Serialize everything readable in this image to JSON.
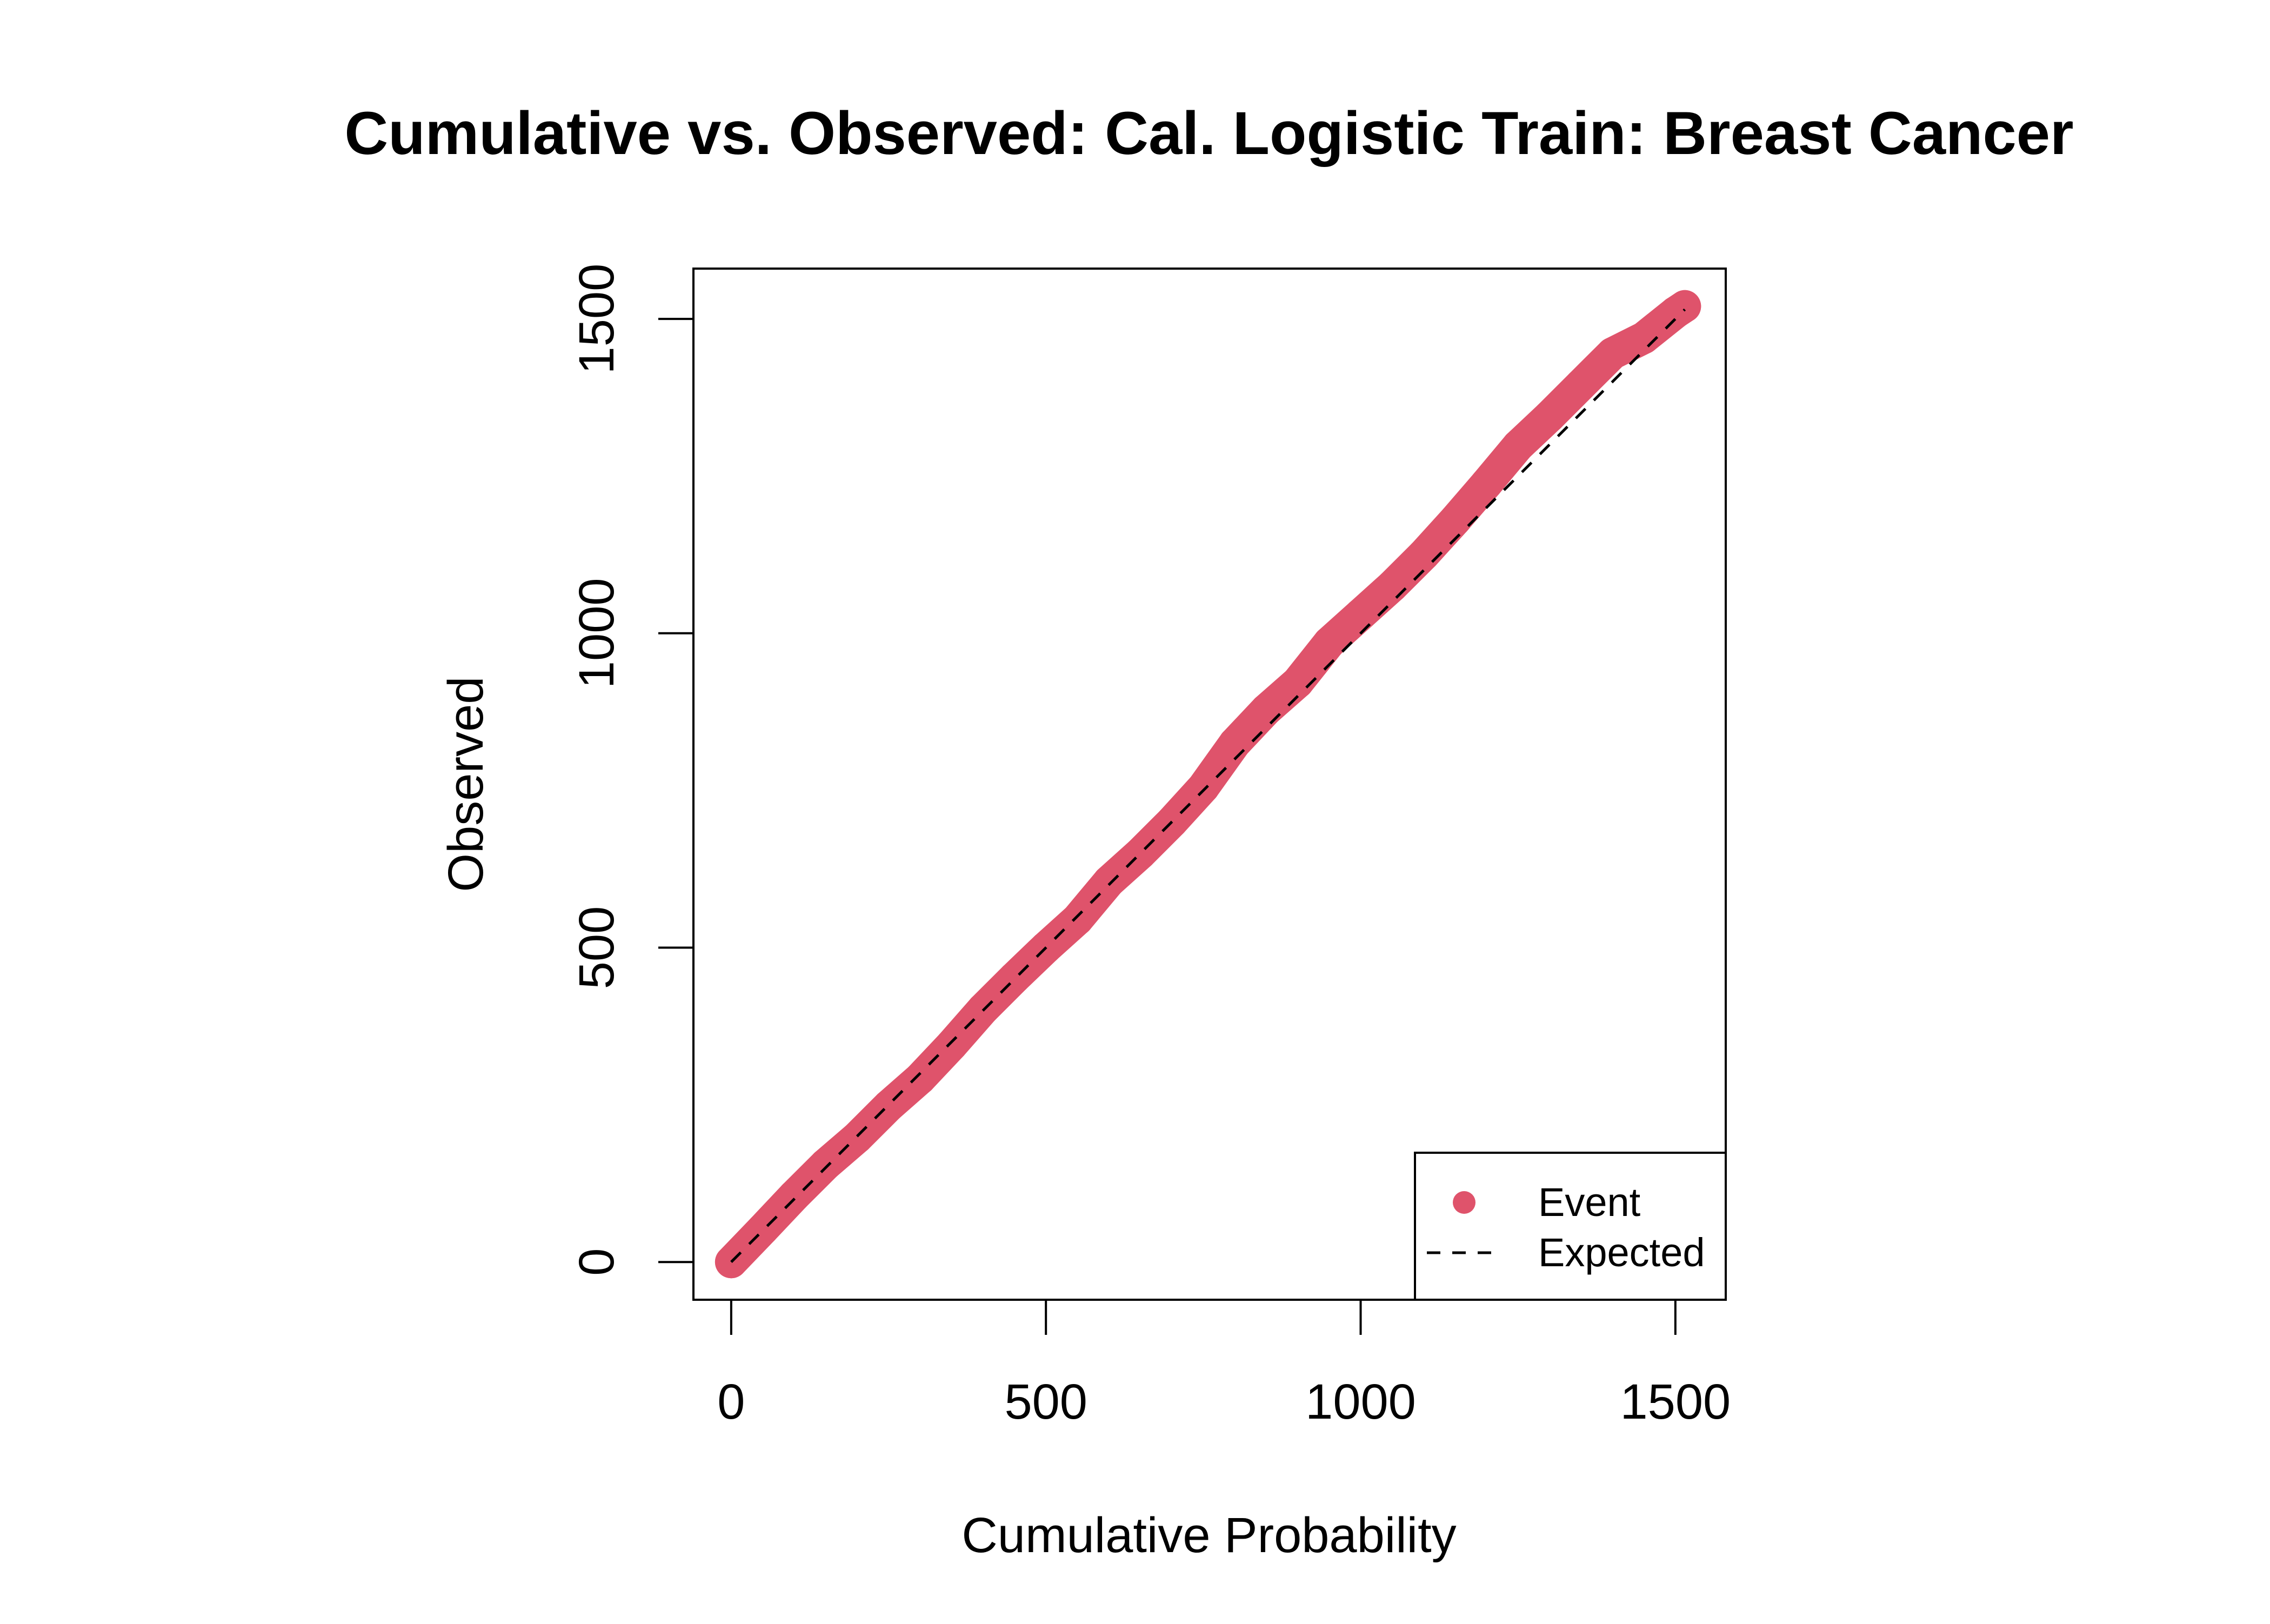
{
  "chart_data": {
    "type": "scatter",
    "title": "Cumulative vs. Observed: Cal. Logistic Train: Breast Cancer",
    "xlabel": "Cumulative Probability",
    "ylabel": "Observed",
    "xlim": [
      -60,
      1580
    ],
    "ylim": [
      -60,
      1580
    ],
    "xticks": [
      0,
      500,
      1000,
      1500
    ],
    "yticks": [
      0,
      500,
      1000,
      1500
    ],
    "xtick_labels": [
      "0",
      "500",
      "1000",
      "1500"
    ],
    "ytick_labels": [
      "0",
      "500",
      "1000",
      "1500"
    ],
    "grid": false,
    "legend": {
      "placement": "bottom-right",
      "entries": [
        {
          "label": "Event",
          "type": "point",
          "color": "#DF536B"
        },
        {
          "label": "Expected",
          "type": "dashed-line",
          "color": "#000000"
        }
      ]
    },
    "series": [
      {
        "name": "Event",
        "color": "#DF536B",
        "x": [
          0,
          50,
          100,
          150,
          200,
          250,
          300,
          350,
          400,
          450,
          500,
          550,
          600,
          650,
          700,
          750,
          800,
          850,
          900,
          950,
          1000,
          1050,
          1100,
          1150,
          1200,
          1250,
          1300,
          1350,
          1400,
          1450,
          1500,
          1515
        ],
        "y": [
          0,
          52,
          105,
          155,
          198,
          248,
          292,
          345,
          402,
          452,
          500,
          545,
          605,
          650,
          700,
          755,
          825,
          878,
          922,
          985,
          1030,
          1075,
          1125,
          1180,
          1238,
          1298,
          1345,
          1395,
          1445,
          1470,
          1510,
          1520
        ]
      },
      {
        "name": "Expected",
        "color": "#000000",
        "x": [
          0,
          1515
        ],
        "y": [
          0,
          1515
        ]
      }
    ]
  }
}
